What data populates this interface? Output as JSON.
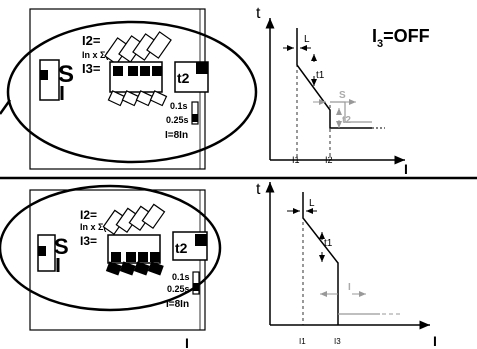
{
  "top": {
    "unit": {
      "mode": "S",
      "i2": "I2=",
      "inx": "In x Σ(",
      "i3": "I3=",
      "t2": "t2",
      "time1": "0.1s",
      "time2": "0.25s",
      "formula": "I=8In"
    },
    "curve": {
      "t_axis": "t",
      "i_axis": "I",
      "l": "L",
      "t1": "t1",
      "s": "S",
      "t2": "t2",
      "i1": "I1",
      "i2": "I2",
      "status_main": "I",
      "status_sub": "3",
      "status_rest": "=OFF"
    }
  },
  "bottom": {
    "unit": {
      "mode": "S",
      "i2": "I2=",
      "inx": "In x Σ(",
      "i3": "I3=",
      "t2": "t2",
      "time1": "0.1s",
      "time2": "0.25s",
      "formula": "I=8In"
    },
    "below_label": "I",
    "curve": {
      "t_axis": "t",
      "i_axis": "I",
      "l": "L",
      "t1": "t1",
      "i": "I",
      "i1": "I1",
      "i3": "I3"
    }
  }
}
